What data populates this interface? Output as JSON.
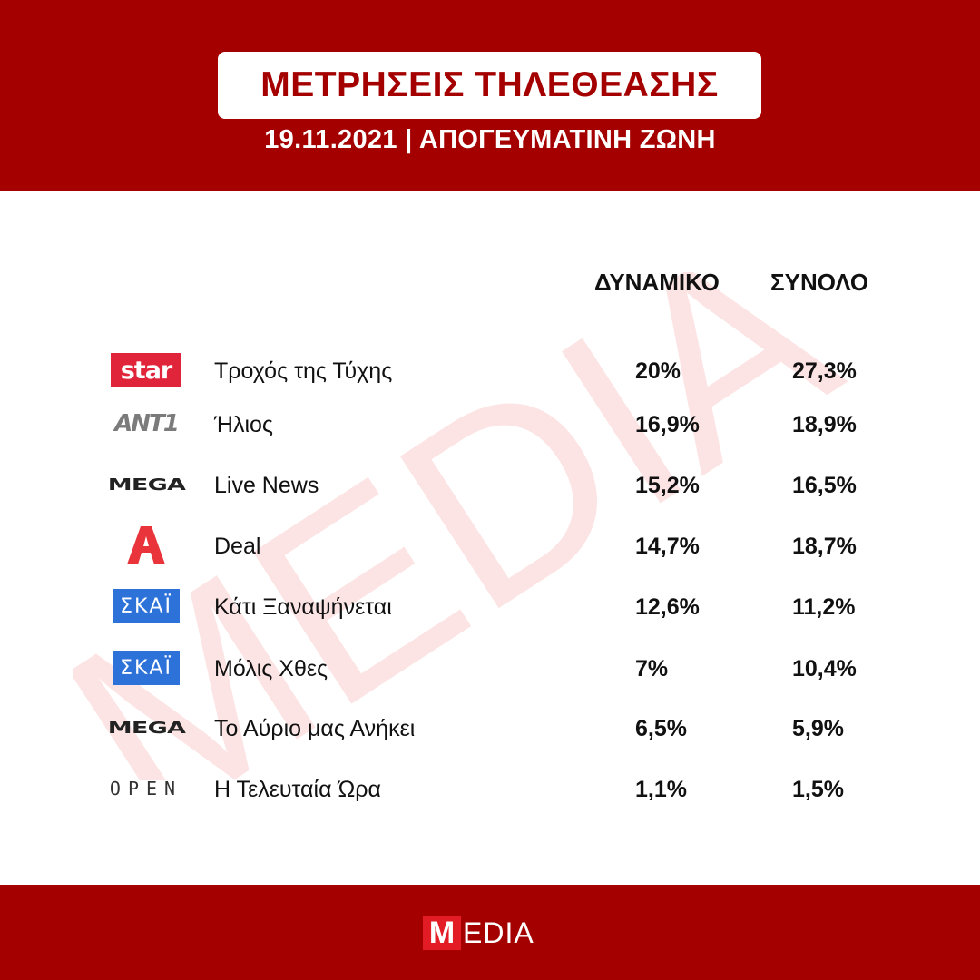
{
  "header": {
    "title": "ΜΕΤΡΗΣΕΙΣ ΤΗΛΕΘΕΑΣΗΣ",
    "subtitle": "19.11.2021 | ΑΠΟΓΕΥΜΑΤΙΝΗ ΖΩΝΗ"
  },
  "watermark": {
    "text": "MEDIA"
  },
  "table": {
    "columns": {
      "dynamic": "ΔΥΝΑΜΙΚΟ",
      "total": "ΣΥΝΟΛΟ"
    },
    "rows": [
      {
        "channel_logo": "star",
        "channel_icon": "star-channel-logo",
        "show": "Τροχός της Τύχης",
        "dynamic": "20%",
        "total": "27,3%"
      },
      {
        "channel_logo": "ANT1",
        "channel_icon": "ant1-channel-logo",
        "show": "Ήλιος",
        "dynamic": "16,9%",
        "total": "18,9%"
      },
      {
        "channel_logo": "MEGA",
        "channel_icon": "mega-channel-logo",
        "show": "Live News",
        "dynamic": "15,2%",
        "total": "16,5%"
      },
      {
        "channel_logo": "Alpha",
        "channel_icon": "alpha-channel-logo",
        "show": "Deal",
        "dynamic": "14,7%",
        "total": "18,7%"
      },
      {
        "channel_logo": "ΣΚΑΪ",
        "channel_icon": "skai-channel-logo",
        "show": "Κάτι Ξαναψήνεται",
        "dynamic": "12,6%",
        "total": "11,2%"
      },
      {
        "channel_logo": "ΣΚΑΪ",
        "channel_icon": "skai-channel-logo",
        "show": "Μόλις Χθες",
        "dynamic": "7%",
        "total": "10,4%"
      },
      {
        "channel_logo": "MEGA",
        "channel_icon": "mega-channel-logo",
        "show": "Το Αύριο μας Ανήκει",
        "dynamic": "6,5%",
        "total": "5,9%"
      },
      {
        "channel_logo": "OPEN",
        "channel_icon": "open-channel-logo",
        "show": "Η Τελευταία Ώρα",
        "dynamic": "1,1%",
        "total": "1,5%"
      }
    ]
  },
  "footer": {
    "logo_m": "M",
    "logo_rest": "EDIA"
  },
  "colors": {
    "brand_red": "#a50000",
    "star_red": "#e0253b",
    "skai_blue": "#2d72d9",
    "alpha_red": "#e8343a",
    "watermark": "#fde4e4"
  }
}
